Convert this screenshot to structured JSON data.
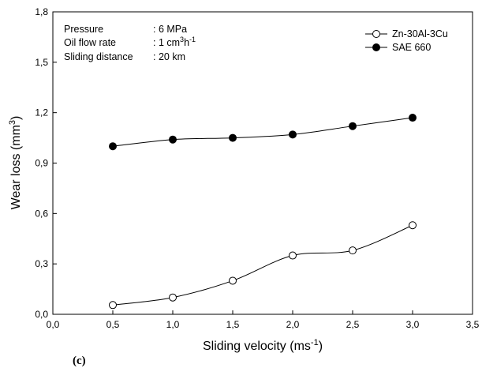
{
  "chart_data": {
    "type": "line",
    "xlabel": "Sliding velocity (ms",
    "xlabel_sup": "-1",
    "xlabel_end": ")",
    "ylabel": "Wear loss (mm",
    "ylabel_sup": "3",
    "ylabel_end": ")",
    "xlim": [
      0.0,
      3.5
    ],
    "ylim": [
      0.0,
      1.8
    ],
    "xticks": [
      0.0,
      0.5,
      1.0,
      1.5,
      2.0,
      2.5,
      3.0,
      3.5
    ],
    "xtick_labels": [
      "0,0",
      "0,5",
      "1,0",
      "1,5",
      "2,0",
      "2,5",
      "3,0",
      "3,5"
    ],
    "yticks": [
      0.0,
      0.3,
      0.6,
      0.9,
      1.2,
      1.5,
      1.8
    ],
    "ytick_labels": [
      "0,0",
      "0,3",
      "0,6",
      "0,9",
      "1,2",
      "1,5",
      "1,8"
    ],
    "grid": false,
    "legend_position": "top-right",
    "series": [
      {
        "name": "Zn-30Al-3Cu",
        "marker": "open-circle",
        "x": [
          0.5,
          1.0,
          1.5,
          2.0,
          2.5,
          3.0
        ],
        "y": [
          0.055,
          0.1,
          0.2,
          0.35,
          0.38,
          0.53
        ]
      },
      {
        "name": "SAE 660",
        "marker": "filled-circle",
        "x": [
          0.5,
          1.0,
          1.5,
          2.0,
          2.5,
          3.0
        ],
        "y": [
          1.0,
          1.04,
          1.05,
          1.07,
          1.12,
          1.17
        ]
      }
    ],
    "annotations": {
      "pressure_label": "Pressure",
      "pressure_value": ": 6 MPa",
      "oil_label": "Oil flow rate",
      "oil_value_pre": ": 1 cm",
      "oil_value_sup1": "3",
      "oil_value_mid": "h",
      "oil_value_sup2": "-1",
      "distance_label": "Sliding distance",
      "distance_value": ": 20 km"
    },
    "panel_label": "(c)"
  }
}
